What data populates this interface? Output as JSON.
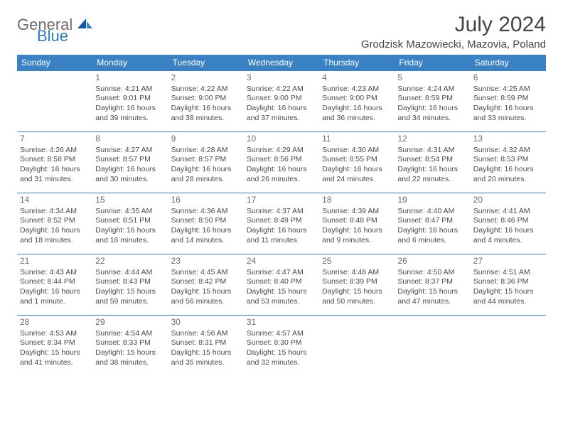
{
  "logo": {
    "general": "General",
    "blue": "Blue"
  },
  "title": "July 2024",
  "location": "Grodzisk Mazowiecki, Mazovia, Poland",
  "colors": {
    "header_bg": "#3a82c4",
    "header_text": "#ffffff",
    "border": "#3a82c4",
    "daynum": "#6b6b6b",
    "body_text": "#4a4a4a",
    "logo_gray": "#6b6b6b",
    "logo_blue": "#2f78c2"
  },
  "weekdays": [
    "Sunday",
    "Monday",
    "Tuesday",
    "Wednesday",
    "Thursday",
    "Friday",
    "Saturday"
  ],
  "weeks": [
    [
      {
        "n": "",
        "sr": "",
        "ss": "",
        "dl": ""
      },
      {
        "n": "1",
        "sr": "Sunrise: 4:21 AM",
        "ss": "Sunset: 9:01 PM",
        "dl": "Daylight: 16 hours and 39 minutes."
      },
      {
        "n": "2",
        "sr": "Sunrise: 4:22 AM",
        "ss": "Sunset: 9:00 PM",
        "dl": "Daylight: 16 hours and 38 minutes."
      },
      {
        "n": "3",
        "sr": "Sunrise: 4:22 AM",
        "ss": "Sunset: 9:00 PM",
        "dl": "Daylight: 16 hours and 37 minutes."
      },
      {
        "n": "4",
        "sr": "Sunrise: 4:23 AM",
        "ss": "Sunset: 9:00 PM",
        "dl": "Daylight: 16 hours and 36 minutes."
      },
      {
        "n": "5",
        "sr": "Sunrise: 4:24 AM",
        "ss": "Sunset: 8:59 PM",
        "dl": "Daylight: 16 hours and 34 minutes."
      },
      {
        "n": "6",
        "sr": "Sunrise: 4:25 AM",
        "ss": "Sunset: 8:59 PM",
        "dl": "Daylight: 16 hours and 33 minutes."
      }
    ],
    [
      {
        "n": "7",
        "sr": "Sunrise: 4:26 AM",
        "ss": "Sunset: 8:58 PM",
        "dl": "Daylight: 16 hours and 31 minutes."
      },
      {
        "n": "8",
        "sr": "Sunrise: 4:27 AM",
        "ss": "Sunset: 8:57 PM",
        "dl": "Daylight: 16 hours and 30 minutes."
      },
      {
        "n": "9",
        "sr": "Sunrise: 4:28 AM",
        "ss": "Sunset: 8:57 PM",
        "dl": "Daylight: 16 hours and 28 minutes."
      },
      {
        "n": "10",
        "sr": "Sunrise: 4:29 AM",
        "ss": "Sunset: 8:56 PM",
        "dl": "Daylight: 16 hours and 26 minutes."
      },
      {
        "n": "11",
        "sr": "Sunrise: 4:30 AM",
        "ss": "Sunset: 8:55 PM",
        "dl": "Daylight: 16 hours and 24 minutes."
      },
      {
        "n": "12",
        "sr": "Sunrise: 4:31 AM",
        "ss": "Sunset: 8:54 PM",
        "dl": "Daylight: 16 hours and 22 minutes."
      },
      {
        "n": "13",
        "sr": "Sunrise: 4:32 AM",
        "ss": "Sunset: 8:53 PM",
        "dl": "Daylight: 16 hours and 20 minutes."
      }
    ],
    [
      {
        "n": "14",
        "sr": "Sunrise: 4:34 AM",
        "ss": "Sunset: 8:52 PM",
        "dl": "Daylight: 16 hours and 18 minutes."
      },
      {
        "n": "15",
        "sr": "Sunrise: 4:35 AM",
        "ss": "Sunset: 8:51 PM",
        "dl": "Daylight: 16 hours and 16 minutes."
      },
      {
        "n": "16",
        "sr": "Sunrise: 4:36 AM",
        "ss": "Sunset: 8:50 PM",
        "dl": "Daylight: 16 hours and 14 minutes."
      },
      {
        "n": "17",
        "sr": "Sunrise: 4:37 AM",
        "ss": "Sunset: 8:49 PM",
        "dl": "Daylight: 16 hours and 11 minutes."
      },
      {
        "n": "18",
        "sr": "Sunrise: 4:39 AM",
        "ss": "Sunset: 8:48 PM",
        "dl": "Daylight: 16 hours and 9 minutes."
      },
      {
        "n": "19",
        "sr": "Sunrise: 4:40 AM",
        "ss": "Sunset: 8:47 PM",
        "dl": "Daylight: 16 hours and 6 minutes."
      },
      {
        "n": "20",
        "sr": "Sunrise: 4:41 AM",
        "ss": "Sunset: 8:46 PM",
        "dl": "Daylight: 16 hours and 4 minutes."
      }
    ],
    [
      {
        "n": "21",
        "sr": "Sunrise: 4:43 AM",
        "ss": "Sunset: 8:44 PM",
        "dl": "Daylight: 16 hours and 1 minute."
      },
      {
        "n": "22",
        "sr": "Sunrise: 4:44 AM",
        "ss": "Sunset: 8:43 PM",
        "dl": "Daylight: 15 hours and 59 minutes."
      },
      {
        "n": "23",
        "sr": "Sunrise: 4:45 AM",
        "ss": "Sunset: 8:42 PM",
        "dl": "Daylight: 15 hours and 56 minutes."
      },
      {
        "n": "24",
        "sr": "Sunrise: 4:47 AM",
        "ss": "Sunset: 8:40 PM",
        "dl": "Daylight: 15 hours and 53 minutes."
      },
      {
        "n": "25",
        "sr": "Sunrise: 4:48 AM",
        "ss": "Sunset: 8:39 PM",
        "dl": "Daylight: 15 hours and 50 minutes."
      },
      {
        "n": "26",
        "sr": "Sunrise: 4:50 AM",
        "ss": "Sunset: 8:37 PM",
        "dl": "Daylight: 15 hours and 47 minutes."
      },
      {
        "n": "27",
        "sr": "Sunrise: 4:51 AM",
        "ss": "Sunset: 8:36 PM",
        "dl": "Daylight: 15 hours and 44 minutes."
      }
    ],
    [
      {
        "n": "28",
        "sr": "Sunrise: 4:53 AM",
        "ss": "Sunset: 8:34 PM",
        "dl": "Daylight: 15 hours and 41 minutes."
      },
      {
        "n": "29",
        "sr": "Sunrise: 4:54 AM",
        "ss": "Sunset: 8:33 PM",
        "dl": "Daylight: 15 hours and 38 minutes."
      },
      {
        "n": "30",
        "sr": "Sunrise: 4:56 AM",
        "ss": "Sunset: 8:31 PM",
        "dl": "Daylight: 15 hours and 35 minutes."
      },
      {
        "n": "31",
        "sr": "Sunrise: 4:57 AM",
        "ss": "Sunset: 8:30 PM",
        "dl": "Daylight: 15 hours and 32 minutes."
      },
      {
        "n": "",
        "sr": "",
        "ss": "",
        "dl": ""
      },
      {
        "n": "",
        "sr": "",
        "ss": "",
        "dl": ""
      },
      {
        "n": "",
        "sr": "",
        "ss": "",
        "dl": ""
      }
    ]
  ]
}
